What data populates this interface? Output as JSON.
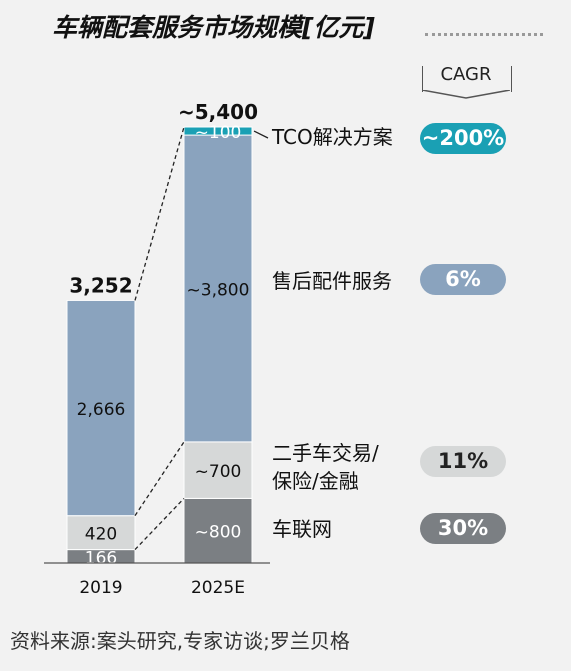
{
  "title": "车辆配套服务市场规模[亿元]",
  "cagr_label": "CAGR",
  "source": "资料来源:案头研究,专家访谈;罗兰贝格",
  "colors": {
    "background": "#f2f2f2",
    "tco": "#1aa0b4",
    "aftermarket": "#8aa3be",
    "used_car": "#d6d8d8",
    "connected": "#7b7f83"
  },
  "chart_data": {
    "type": "bar",
    "stacked": true,
    "categories": [
      "2019",
      "2025E"
    ],
    "totals": [
      "3,252",
      "~5,400"
    ],
    "ylim": [
      0,
      5400
    ],
    "series": [
      {
        "name": "车联网",
        "values": [
          166,
          800
        ],
        "labels": [
          "166",
          "~800"
        ],
        "cagr": "30%"
      },
      {
        "name": "二手车交易/保险/金融",
        "values": [
          420,
          700
        ],
        "labels": [
          "420",
          "~700"
        ],
        "cagr": "11%"
      },
      {
        "name": "售后配件服务",
        "values": [
          2666,
          3800
        ],
        "labels": [
          "2,666",
          "~3,800"
        ],
        "cagr": "6%"
      },
      {
        "name": "TCO解决方案",
        "values": [
          0,
          100
        ],
        "labels": [
          "",
          "~100"
        ],
        "cagr": "~200%"
      }
    ]
  },
  "legend": {
    "tco_name": "TCO解决方案",
    "aftermarket_name": "售后配件服务",
    "used_car_line1": "二手车交易/",
    "used_car_line2": "保险/金融",
    "connected_name": "车联网",
    "tco_cagr": "~200%",
    "aftermarket_cagr": "6%",
    "used_car_cagr": "11%",
    "connected_cagr": "30%"
  }
}
